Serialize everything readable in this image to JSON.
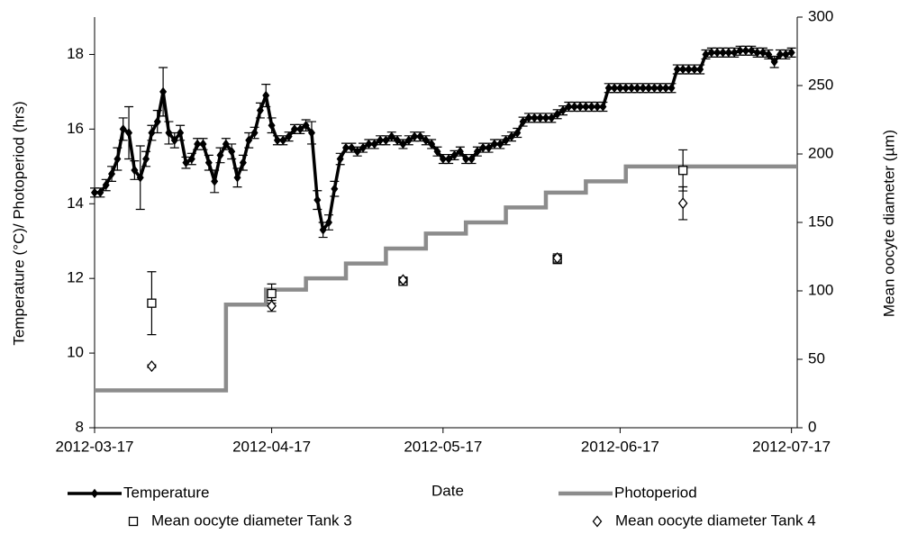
{
  "chart_data": {
    "type": "line",
    "xlabel": "Date",
    "ylabel": "Temperature (°C)/ Photoperiod (hrs)",
    "y2label": "Mean oocyte diameter (µm)",
    "xlim": [
      "2012-03-17",
      "2012-07-18"
    ],
    "xticks": [
      "2012-03-17",
      "2012-04-17",
      "2012-05-17",
      "2012-06-17",
      "2012-07-17"
    ],
    "ylim": [
      8,
      19
    ],
    "yticks": [
      8,
      10,
      12,
      14,
      16,
      18
    ],
    "y2lim": [
      0,
      300
    ],
    "y2ticks": [
      0,
      50,
      100,
      150,
      200,
      250,
      300
    ],
    "grid": false,
    "legend": "bottom",
    "series": [
      {
        "name": "Temperature",
        "color": "#000000",
        "style": "line",
        "marker": "diamond",
        "filled": true,
        "x": [
          "2012-03-17",
          "2012-03-18",
          "2012-03-19",
          "2012-03-20",
          "2012-03-21",
          "2012-03-22",
          "2012-03-23",
          "2012-03-24",
          "2012-03-25",
          "2012-03-26",
          "2012-03-27",
          "2012-03-28",
          "2012-03-29",
          "2012-03-30",
          "2012-03-31",
          "2012-04-01",
          "2012-04-02",
          "2012-04-03",
          "2012-04-04",
          "2012-04-05",
          "2012-04-06",
          "2012-04-07",
          "2012-04-08",
          "2012-04-09",
          "2012-04-10",
          "2012-04-11",
          "2012-04-12",
          "2012-04-13",
          "2012-04-14",
          "2012-04-15",
          "2012-04-16",
          "2012-04-17",
          "2012-04-18",
          "2012-04-19",
          "2012-04-20",
          "2012-04-21",
          "2012-04-22",
          "2012-04-23",
          "2012-04-24",
          "2012-04-25",
          "2012-04-26",
          "2012-04-27",
          "2012-04-28",
          "2012-04-29",
          "2012-04-30",
          "2012-05-01",
          "2012-05-02",
          "2012-05-03",
          "2012-05-04",
          "2012-05-05",
          "2012-05-06",
          "2012-05-07",
          "2012-05-08",
          "2012-05-09",
          "2012-05-10",
          "2012-05-11",
          "2012-05-12",
          "2012-05-13",
          "2012-05-14",
          "2012-05-15",
          "2012-05-16",
          "2012-05-17",
          "2012-05-18",
          "2012-05-19",
          "2012-05-20",
          "2012-05-21",
          "2012-05-22",
          "2012-05-23",
          "2012-05-24",
          "2012-05-25",
          "2012-05-26",
          "2012-05-27",
          "2012-05-28",
          "2012-05-29",
          "2012-05-30",
          "2012-05-31",
          "2012-06-01",
          "2012-06-02",
          "2012-06-03",
          "2012-06-04",
          "2012-06-05",
          "2012-06-06",
          "2012-06-07",
          "2012-06-08",
          "2012-06-09",
          "2012-06-10",
          "2012-06-11",
          "2012-06-12",
          "2012-06-13",
          "2012-06-14",
          "2012-06-15",
          "2012-06-16",
          "2012-06-17",
          "2012-06-18",
          "2012-06-19",
          "2012-06-20",
          "2012-06-21",
          "2012-06-22",
          "2012-06-23",
          "2012-06-24",
          "2012-06-25",
          "2012-06-26",
          "2012-06-27",
          "2012-06-28",
          "2012-06-29",
          "2012-06-30",
          "2012-07-01",
          "2012-07-02",
          "2012-07-03",
          "2012-07-04",
          "2012-07-05",
          "2012-07-06",
          "2012-07-07",
          "2012-07-08",
          "2012-07-09",
          "2012-07-10",
          "2012-07-11",
          "2012-07-12",
          "2012-07-13",
          "2012-07-14",
          "2012-07-15",
          "2012-07-16",
          "2012-07-17"
        ],
        "values": [
          14.3,
          14.3,
          14.5,
          14.8,
          15.2,
          16.0,
          15.9,
          14.9,
          14.7,
          15.2,
          15.9,
          16.2,
          17.0,
          15.9,
          15.7,
          15.9,
          15.1,
          15.2,
          15.6,
          15.6,
          15.1,
          14.6,
          15.3,
          15.6,
          15.4,
          14.7,
          15.1,
          15.7,
          15.9,
          16.5,
          16.9,
          16.1,
          15.7,
          15.7,
          15.8,
          16.0,
          16.0,
          16.1,
          15.9,
          14.1,
          13.3,
          13.5,
          14.4,
          15.2,
          15.5,
          15.5,
          15.4,
          15.5,
          15.6,
          15.6,
          15.7,
          15.7,
          15.8,
          15.7,
          15.6,
          15.7,
          15.8,
          15.8,
          15.7,
          15.6,
          15.4,
          15.2,
          15.2,
          15.3,
          15.4,
          15.2,
          15.2,
          15.4,
          15.5,
          15.5,
          15.6,
          15.6,
          15.7,
          15.8,
          15.9,
          16.2,
          16.3,
          16.3,
          16.3,
          16.3,
          16.3,
          16.4,
          16.5,
          16.6,
          16.6,
          16.6,
          16.6,
          16.6,
          16.6,
          16.6,
          17.1,
          17.1,
          17.1,
          17.1,
          17.1,
          17.1,
          17.1,
          17.1,
          17.1,
          17.1,
          17.1,
          17.1,
          17.6,
          17.6,
          17.6,
          17.6,
          17.6,
          18.0,
          18.05,
          18.05,
          18.05,
          18.05,
          18.05,
          18.1,
          18.1,
          18.1,
          18.05,
          18.05,
          18.0,
          17.8,
          18.0,
          18.0,
          18.05
        ],
        "errors": [
          0.12,
          0.12,
          0.15,
          0.2,
          0.3,
          0.3,
          0.7,
          0.25,
          0.85,
          0.2,
          0.2,
          0.3,
          0.65,
          0.3,
          0.2,
          0.2,
          0.15,
          0.15,
          0.15,
          0.15,
          0.2,
          0.3,
          0.2,
          0.15,
          0.2,
          0.25,
          0.2,
          0.2,
          0.15,
          0.2,
          0.3,
          0.2,
          0.12,
          0.12,
          0.12,
          0.12,
          0.12,
          0.15,
          0.3,
          0.25,
          0.2,
          0.2,
          0.2,
          0.15,
          0.12,
          0.12,
          0.12,
          0.12,
          0.12,
          0.12,
          0.12,
          0.12,
          0.12,
          0.12,
          0.12,
          0.12,
          0.12,
          0.12,
          0.12,
          0.12,
          0.12,
          0.12,
          0.12,
          0.12,
          0.12,
          0.12,
          0.12,
          0.12,
          0.12,
          0.12,
          0.12,
          0.12,
          0.12,
          0.12,
          0.12,
          0.12,
          0.12,
          0.12,
          0.12,
          0.12,
          0.12,
          0.12,
          0.12,
          0.12,
          0.12,
          0.12,
          0.12,
          0.12,
          0.12,
          0.12,
          0.12,
          0.12,
          0.12,
          0.12,
          0.12,
          0.12,
          0.12,
          0.12,
          0.12,
          0.12,
          0.12,
          0.12,
          0.12,
          0.12,
          0.12,
          0.12,
          0.12,
          0.12,
          0.12,
          0.12,
          0.12,
          0.12,
          0.12,
          0.12,
          0.12,
          0.12,
          0.12,
          0.12,
          0.12,
          0.15,
          0.12,
          0.12,
          0.12
        ]
      },
      {
        "name": "Photoperiod",
        "color": "#8c8c8c",
        "style": "step",
        "x": [
          "2012-03-17",
          "2012-04-09",
          "2012-04-16",
          "2012-04-23",
          "2012-04-30",
          "2012-05-07",
          "2012-05-14",
          "2012-05-21",
          "2012-05-28",
          "2012-06-04",
          "2012-06-11",
          "2012-06-18"
        ],
        "values": [
          9,
          11.3,
          11.7,
          12.0,
          12.4,
          12.8,
          13.2,
          13.5,
          13.9,
          14.3,
          14.6,
          15.0
        ]
      },
      {
        "name": "Mean oocyte diameter Tank 3",
        "color": "#000000",
        "style": "points",
        "marker": "square",
        "filled": false,
        "axis": "y2",
        "x": [
          "2012-03-27",
          "2012-04-17",
          "2012-05-10",
          "2012-06-06",
          "2012-06-28"
        ],
        "values": [
          91,
          98,
          107,
          123,
          188
        ],
        "errors": [
          23,
          7,
          2,
          3,
          15
        ]
      },
      {
        "name": "Mean oocyte diameter Tank 4",
        "color": "#000000",
        "style": "points",
        "marker": "diamond",
        "filled": false,
        "axis": "y2",
        "x": [
          "2012-03-27",
          "2012-04-17",
          "2012-05-10",
          "2012-06-06",
          "2012-06-28"
        ],
        "values": [
          45,
          89,
          108,
          124,
          164
        ],
        "errors": [
          1,
          4,
          2,
          3,
          12
        ]
      }
    ]
  }
}
